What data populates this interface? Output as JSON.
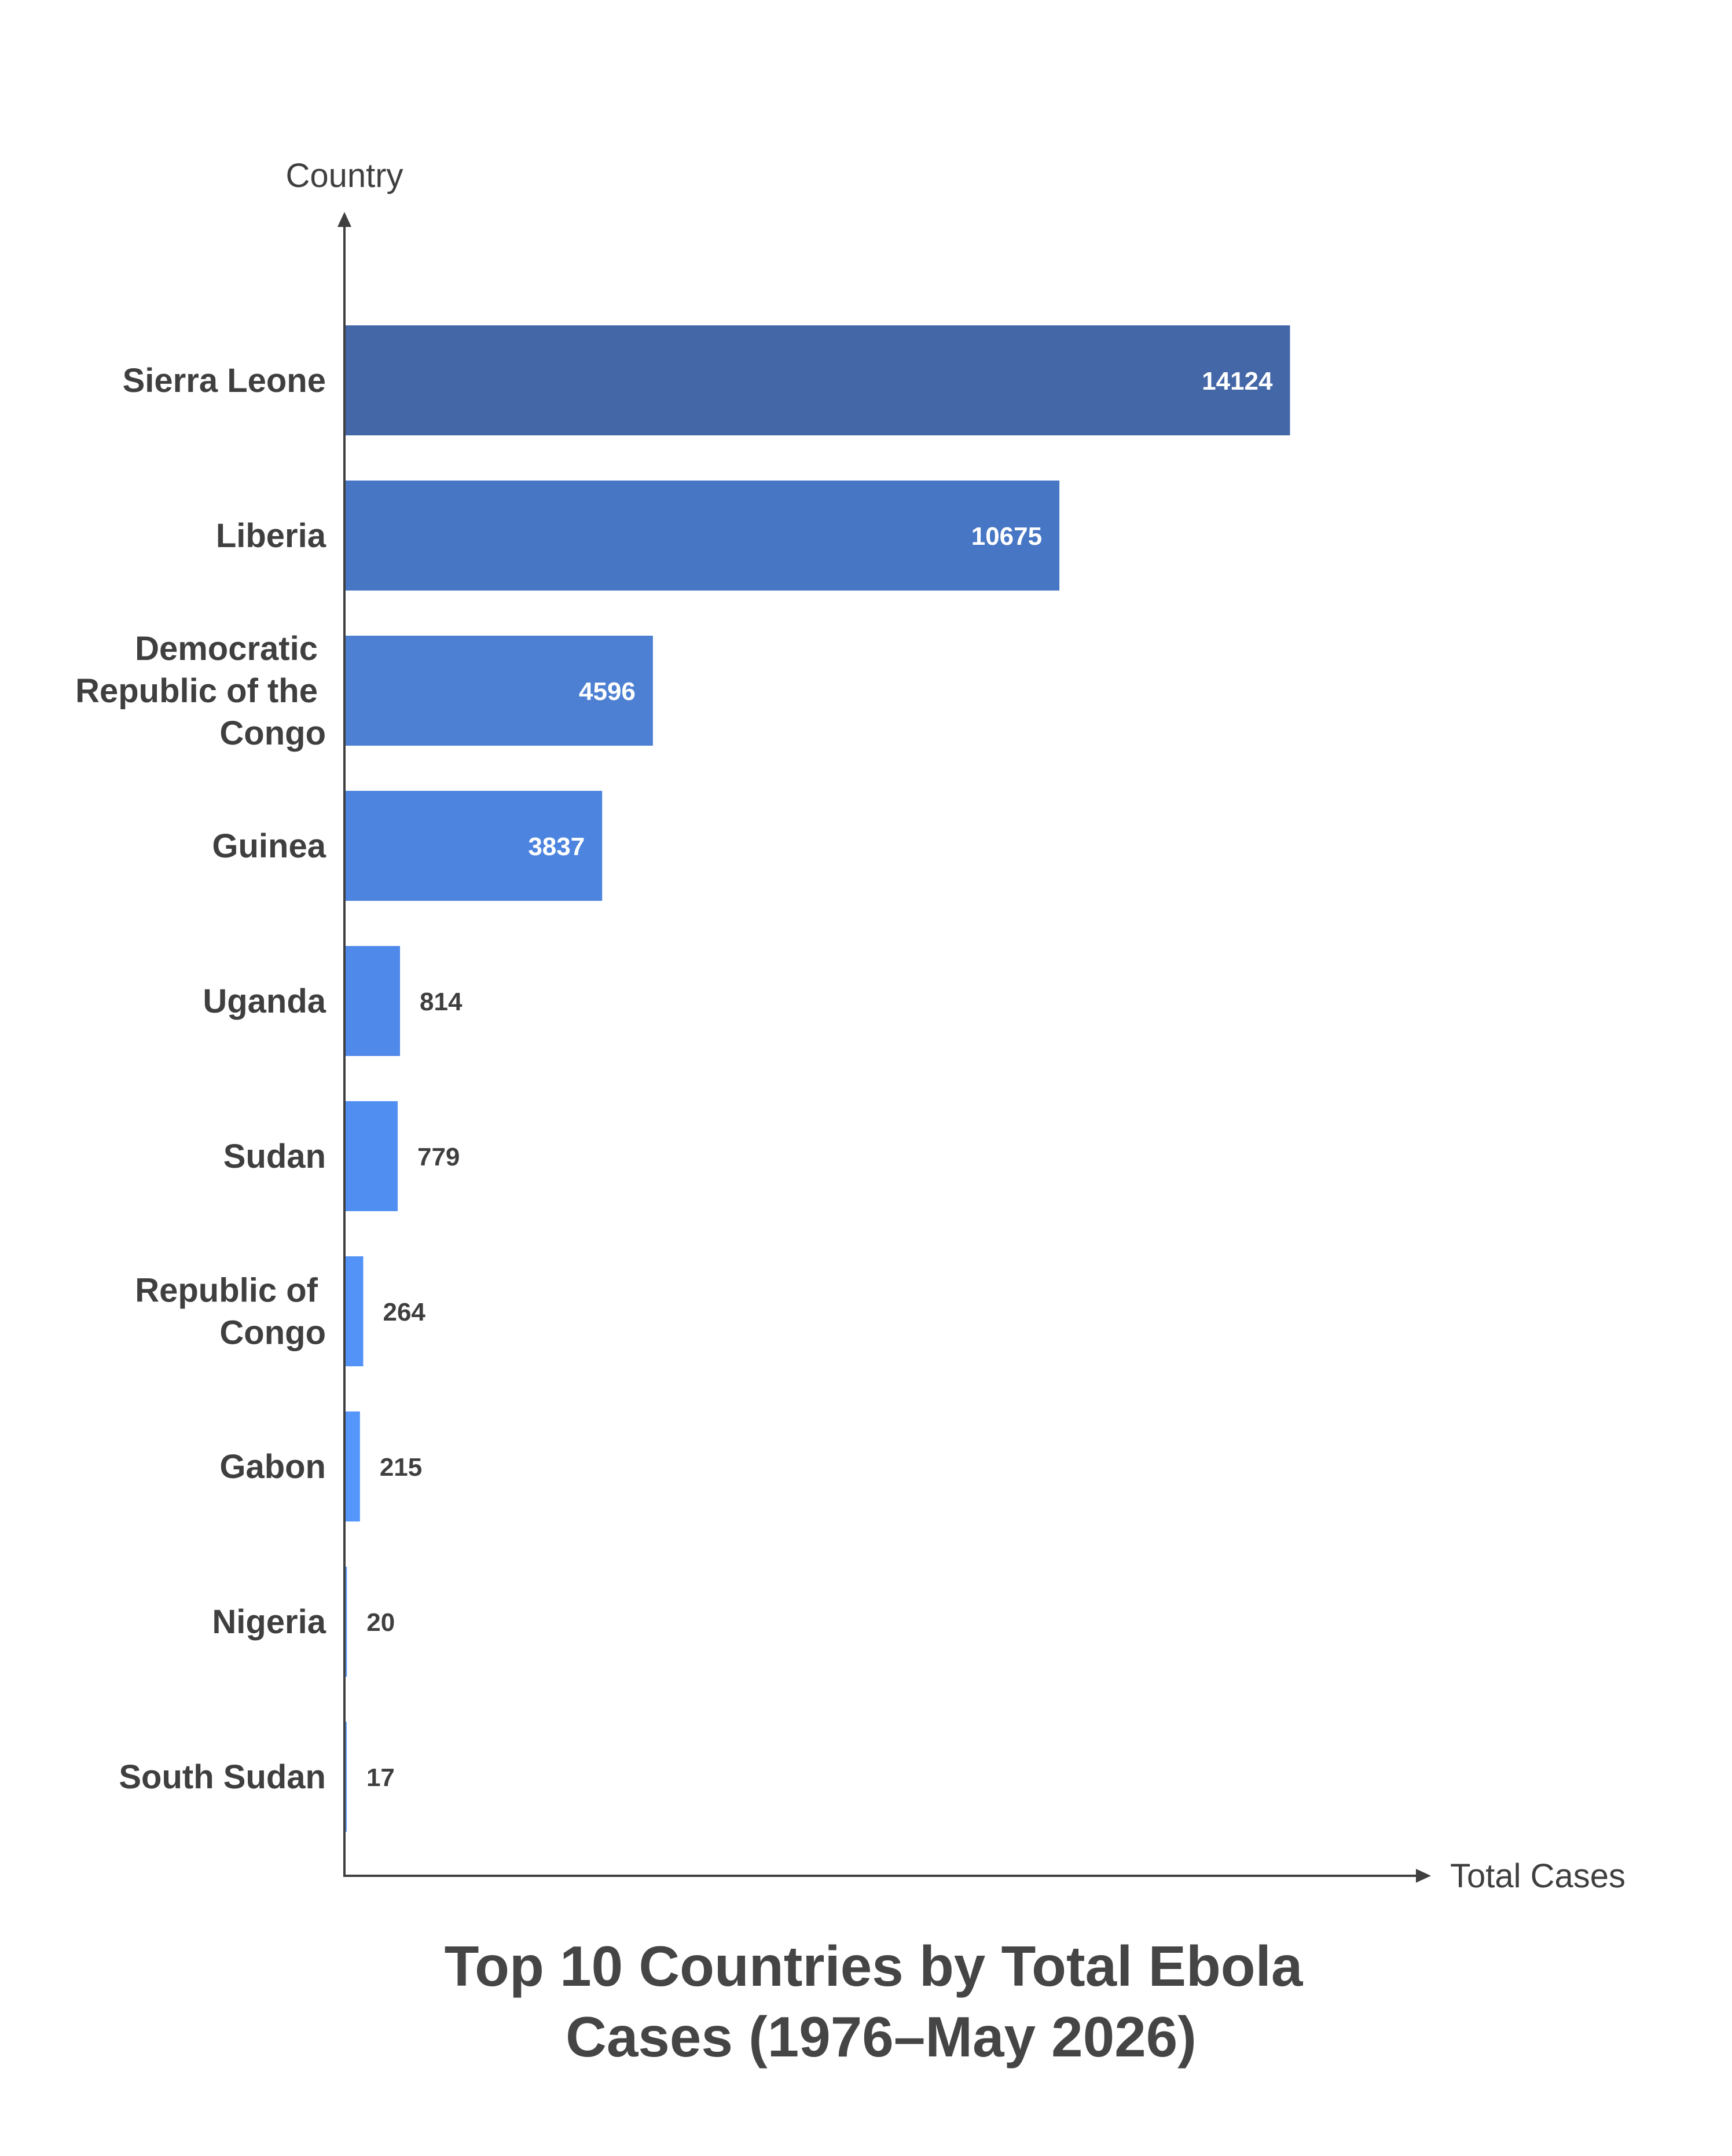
{
  "chart_data": {
    "type": "bar",
    "orientation": "horizontal",
    "title_lines": [
      "Top 10 Countries by Total Ebola",
      "Cases (1976–May 2026)"
    ],
    "xlabel": "Total Cases",
    "ylabel": "Country",
    "categories": [
      "Sierra Leone",
      "Liberia",
      "Democratic Republic of the Congo",
      "Guinea",
      "Uganda",
      "Sudan",
      "Republic of Congo",
      "Gabon",
      "Nigeria",
      "South Sudan"
    ],
    "category_label_lines": [
      [
        "Sierra Leone"
      ],
      [
        "Liberia"
      ],
      [
        "Democratic",
        "Republic of the",
        "Congo"
      ],
      [
        "Guinea"
      ],
      [
        "Uganda"
      ],
      [
        "Sudan"
      ],
      [
        "Republic of",
        "Congo"
      ],
      [
        "Gabon"
      ],
      [
        "Nigeria"
      ],
      [
        "South Sudan"
      ]
    ],
    "values": [
      14124,
      10675,
      4596,
      3837,
      814,
      779,
      264,
      215,
      20,
      17
    ],
    "value_labels": [
      "14124",
      "10675",
      "4596",
      "3837",
      "814",
      "779",
      "264",
      "215",
      "20",
      "17"
    ],
    "xlim": [
      0,
      15150
    ],
    "grid": false,
    "legend": "none",
    "bar_colors": [
      "#4467a8",
      "#4776c4",
      "#4d80d2",
      "#4d84df",
      "#4f89e9",
      "#518ef2",
      "#5392f6",
      "#5596fa",
      "#5898fc",
      "#5a9afd"
    ]
  }
}
